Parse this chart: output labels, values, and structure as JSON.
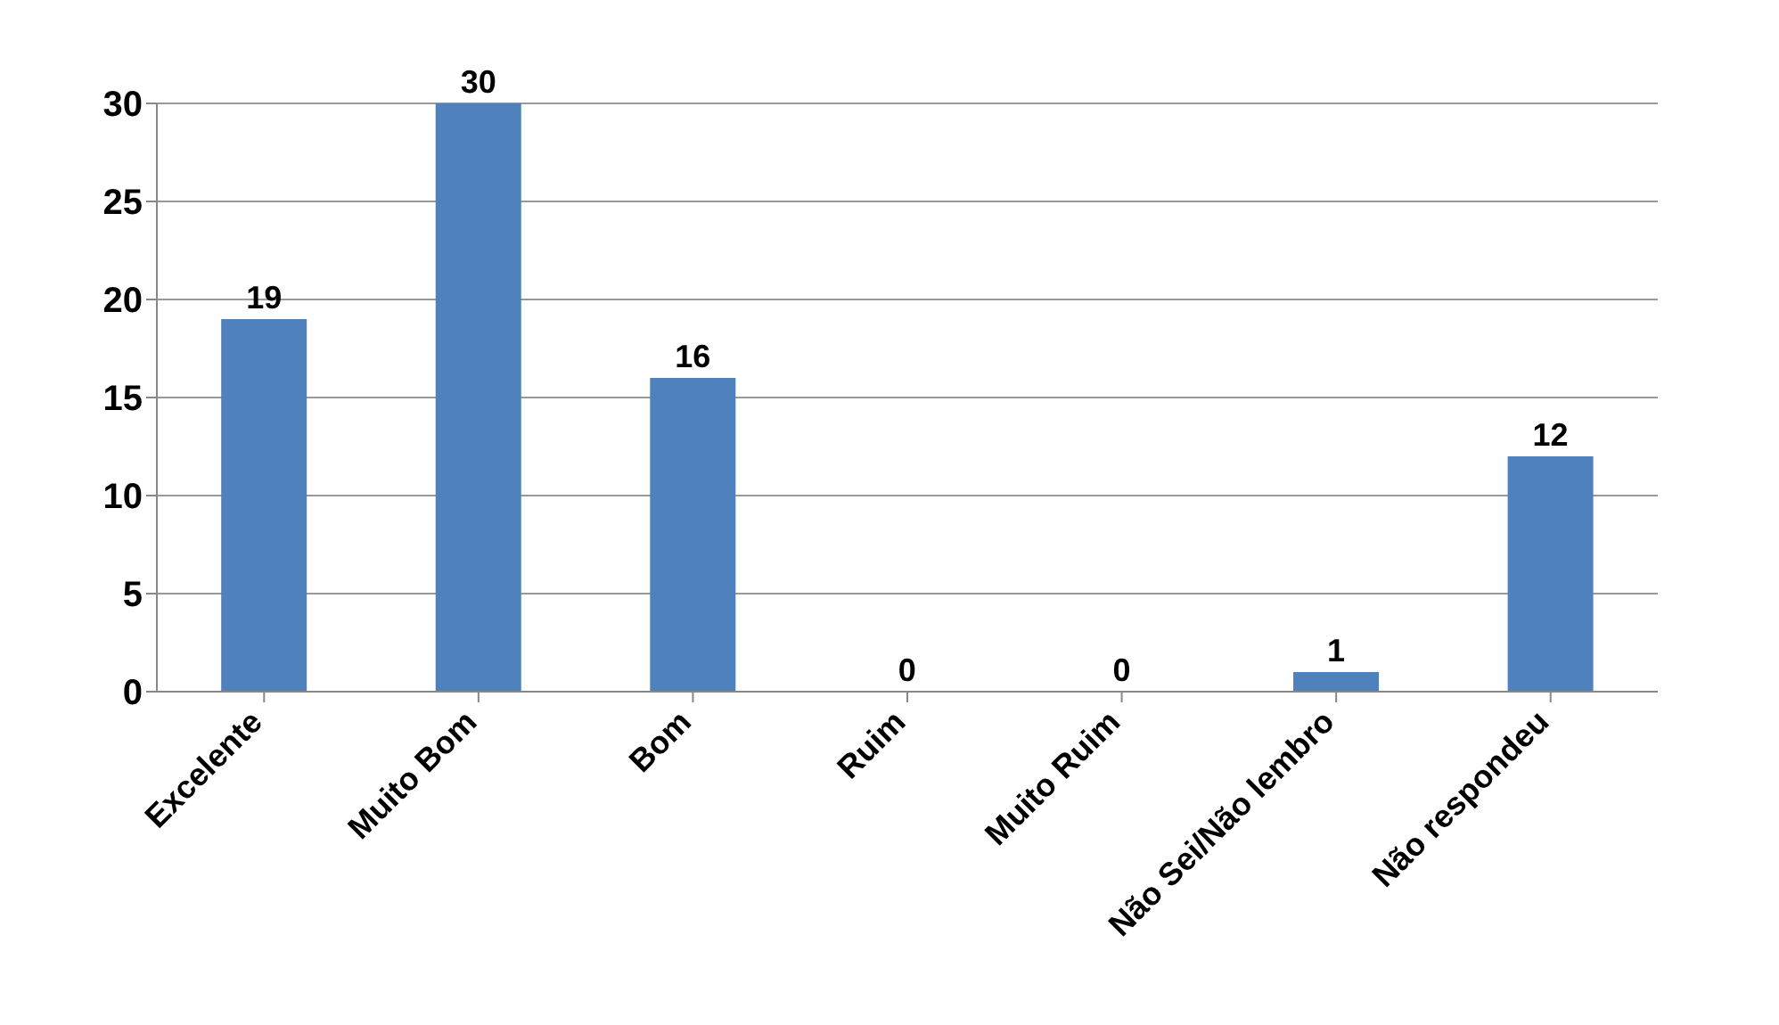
{
  "chart_data": {
    "type": "bar",
    "categories": [
      "Excelente",
      "Muito Bom",
      "Bom",
      "Ruim",
      "Muito Ruim",
      "Não Sei/Não lembro",
      "Não respondeu"
    ],
    "values": [
      19,
      30,
      16,
      0,
      0,
      1,
      12
    ],
    "color": "#4f81bd",
    "ylim": [
      0,
      30
    ],
    "yticks": [
      0,
      5,
      10,
      15,
      20,
      25,
      30
    ],
    "grid": "y",
    "data_labels": true
  }
}
